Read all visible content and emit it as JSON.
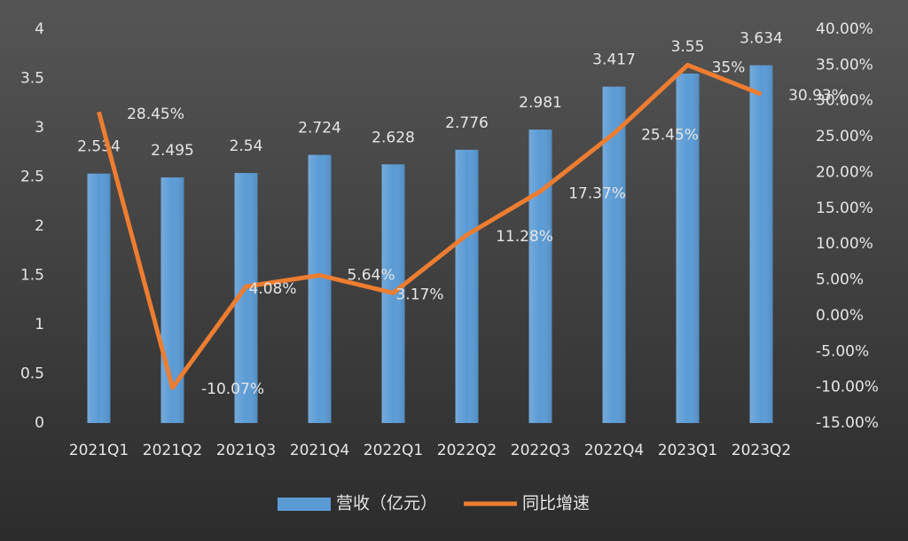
{
  "chart_data": {
    "type": "bar",
    "categories": [
      "2021Q1",
      "2021Q2",
      "2021Q3",
      "2021Q4",
      "2022Q1",
      "2022Q2",
      "2022Q3",
      "2022Q4",
      "2023Q1",
      "2023Q2"
    ],
    "series": [
      {
        "name": "营收（亿元）",
        "type": "bar",
        "color": "#5b9bd5",
        "values": [
          2.534,
          2.495,
          2.54,
          2.724,
          2.628,
          2.776,
          2.981,
          3.417,
          3.55,
          3.634
        ]
      },
      {
        "name": "同比增速",
        "type": "line",
        "axis": "y2",
        "color": "#ed7d31",
        "values": [
          28.45,
          -10.07,
          4.08,
          5.64,
          3.17,
          11.28,
          17.37,
          25.45,
          35,
          30.93
        ],
        "value_labels": [
          "28.45%",
          "-10.07%",
          "4.08%",
          "5.64%",
          "3.17%",
          "11.28%",
          "17.37%",
          "25.45%",
          "35%",
          "30.93%"
        ]
      }
    ],
    "ylim": [
      0,
      4
    ],
    "yticks": [
      0,
      0.5,
      1,
      1.5,
      2,
      2.5,
      3,
      3.5,
      4
    ],
    "y2lim": [
      -15,
      40
    ],
    "y2ticks": [
      {
        "value": -15,
        "label": "-15.00%"
      },
      {
        "value": -10,
        "label": "-10.00%"
      },
      {
        "value": -5,
        "label": "-5.00%"
      },
      {
        "value": 0,
        "label": "0.00%"
      },
      {
        "value": 5,
        "label": "5.00%"
      },
      {
        "value": 10,
        "label": "10.00%"
      },
      {
        "value": 15,
        "label": "15.00%"
      },
      {
        "value": 20,
        "label": "20.00%"
      },
      {
        "value": 25,
        "label": "25.00%"
      },
      {
        "value": 30,
        "label": "30.00%"
      },
      {
        "value": 35,
        "label": "35.00%"
      },
      {
        "value": 40,
        "label": "40.00%"
      }
    ],
    "legend": "bottom"
  }
}
